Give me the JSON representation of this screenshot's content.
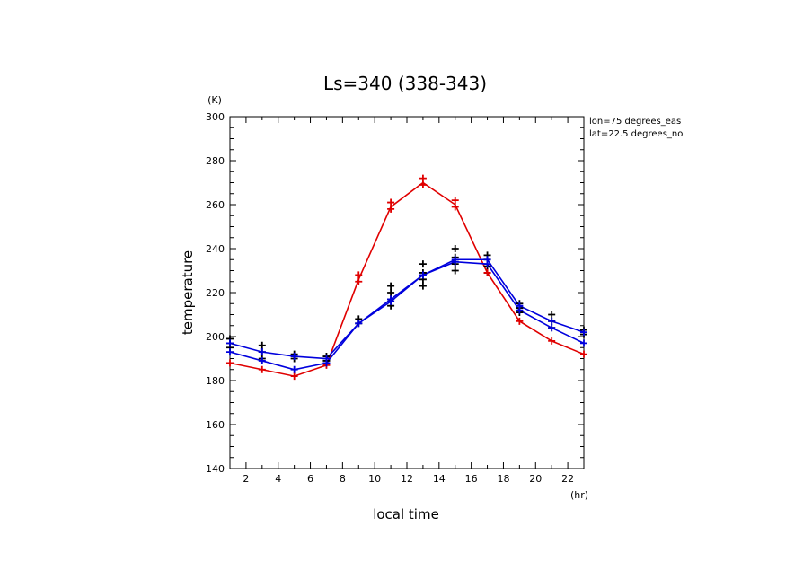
{
  "chart_data": {
    "type": "line",
    "title": "Ls=340 (338-343)",
    "xlabel": "local time",
    "ylabel": "temperature",
    "x_unit": "(hr)",
    "y_unit": "(K)",
    "annotations": [
      "lon=75 degrees_eas",
      "lat=22.5 degrees_no"
    ],
    "xlim": [
      1,
      23
    ],
    "ylim": [
      140,
      300
    ],
    "xticks": [
      2,
      4,
      6,
      8,
      10,
      12,
      14,
      16,
      18,
      20,
      22
    ],
    "yticks": [
      140,
      160,
      180,
      200,
      220,
      240,
      260,
      280,
      300
    ],
    "grid": false,
    "x": [
      1,
      3,
      5,
      7,
      9,
      11,
      13,
      15,
      17,
      19,
      21,
      23
    ],
    "series": [
      {
        "color": "#e00000",
        "values": [
          188,
          185,
          182,
          187,
          226,
          259,
          270,
          260,
          229,
          207,
          198,
          192
        ]
      },
      {
        "color": "#0000dd",
        "values": [
          197,
          193,
          191,
          190,
          206,
          217,
          228,
          235,
          235,
          214,
          207,
          202
        ]
      },
      {
        "color": "#0000dd",
        "values": [
          193,
          189,
          185,
          188,
          206,
          216,
          228,
          234,
          233,
          212,
          204,
          197
        ]
      }
    ],
    "scatter": [
      {
        "color": "#000000",
        "x": [
          1,
          1,
          1,
          3,
          3,
          3,
          5,
          5,
          7,
          7,
          9,
          9,
          11,
          11,
          11,
          11,
          13,
          13,
          13,
          13,
          15,
          15,
          15,
          15,
          17,
          17,
          17,
          17,
          19,
          19,
          19,
          21,
          21,
          21,
          23,
          23
        ],
        "y": [
          199,
          197,
          195,
          196,
          193,
          190,
          192,
          190,
          191,
          189,
          208,
          206,
          223,
          220,
          217,
          214,
          233,
          229,
          226,
          223,
          240,
          236,
          233,
          230,
          237,
          235,
          232,
          229,
          215,
          213,
          211,
          210,
          207,
          204,
          203,
          201
        ]
      },
      {
        "color": "#e00000",
        "x": [
          1,
          3,
          5,
          7,
          9,
          9,
          11,
          11,
          13,
          13,
          15,
          15,
          17,
          19,
          21,
          23
        ],
        "y": [
          188,
          185,
          182,
          187,
          228,
          225,
          261,
          258,
          272,
          269,
          262,
          259,
          229,
          207,
          198,
          192
        ]
      },
      {
        "color": "#0000dd",
        "x": [
          1,
          1,
          3,
          3,
          5,
          5,
          7,
          7,
          9,
          11,
          11,
          13,
          15,
          15,
          17,
          17,
          19,
          19,
          21,
          21,
          23,
          23
        ],
        "y": [
          197,
          193,
          193,
          189,
          191,
          185,
          190,
          188,
          206,
          217,
          216,
          228,
          235,
          234,
          235,
          233,
          214,
          212,
          207,
          204,
          202,
          197
        ]
      }
    ]
  }
}
